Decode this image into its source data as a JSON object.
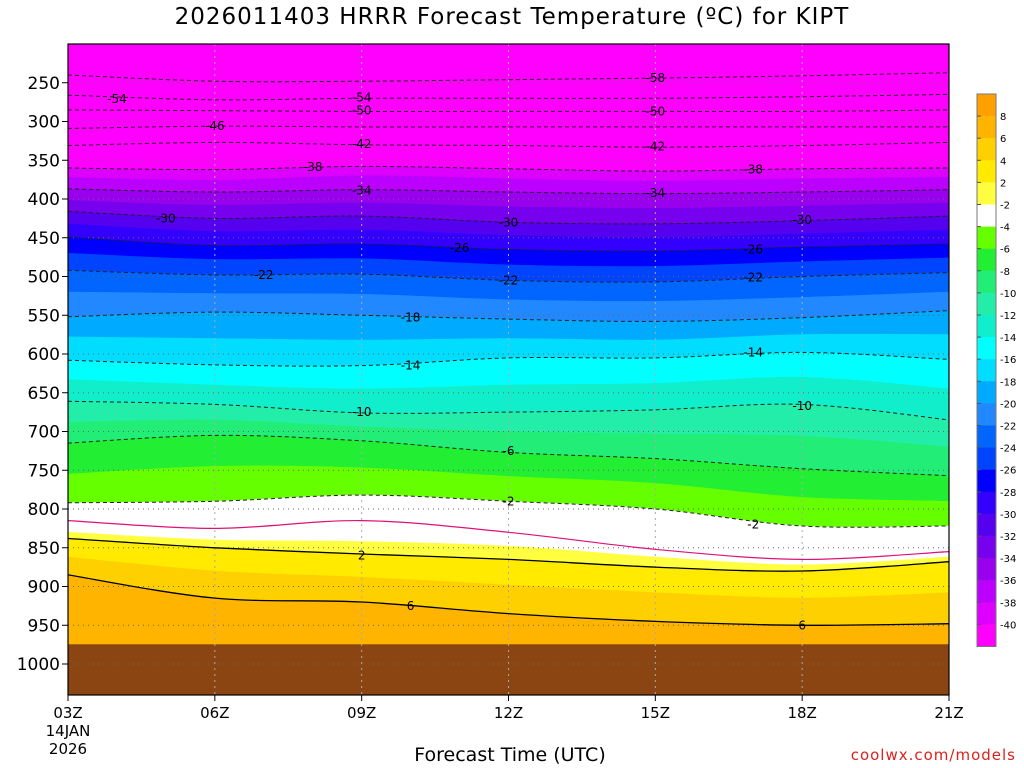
{
  "title": "2026011403 HRRR Forecast Temperature (ºC) for KIPT",
  "credit": "coolwx.com/models",
  "chart_data": {
    "type": "heatmap",
    "title": "2026011403 HRRR Forecast Temperature (ºC) for KIPT",
    "xlabel": "Forecast Time (UTC)",
    "ylabel": "Pressure (hPa)",
    "x_ticks": [
      "03Z",
      "06Z",
      "09Z",
      "12Z",
      "15Z",
      "18Z",
      "21Z"
    ],
    "x_hours": [
      0,
      3,
      6,
      9,
      12,
      15,
      18
    ],
    "x_start_date": [
      "14JAN",
      "2026"
    ],
    "y_ticks": [
      "250",
      "300",
      "350",
      "400",
      "450",
      "500",
      "550",
      "600",
      "650",
      "700",
      "750",
      "800",
      "850",
      "900",
      "950",
      "1000"
    ],
    "y_values": [
      250,
      300,
      350,
      400,
      450,
      500,
      550,
      600,
      650,
      700,
      750,
      800,
      850,
      900,
      950,
      1000
    ],
    "ylim": [
      1040,
      200
    ],
    "xlim": [
      0,
      18
    ],
    "surface_pressure_hPa": 975,
    "colorbar": {
      "labels": [
        "8",
        "6",
        "4",
        "2",
        "-2",
        "-4",
        "-6",
        "-8",
        "-10",
        "-12",
        "-14",
        "-16",
        "-18",
        "-20",
        "-22",
        "-24",
        "-26",
        "-28",
        "-30",
        "-32",
        "-34",
        "-36",
        "-38",
        "-40"
      ],
      "colors": [
        "#ffa000",
        "#ffb400",
        "#ffd000",
        "#ffea00",
        "#ffff40",
        "#ffffff",
        "#66ff00",
        "#22ee33",
        "#22ee77",
        "#22eeaa",
        "#11eecc",
        "#00ffff",
        "#00ddff",
        "#00aaff",
        "#2288ff",
        "#0066ff",
        "#0044ff",
        "#0000ff",
        "#3300ff",
        "#5500ee",
        "#7700ee",
        "#9900ee",
        "#bb00ff",
        "#dd00ff",
        "#ff00ff"
      ]
    },
    "contours": [
      {
        "level": -58,
        "label": "-58",
        "p": [
          240,
          248,
          248,
          246,
          244,
          241,
          237
        ]
      },
      {
        "level": -54,
        "label": "-54",
        "p": [
          266,
          272,
          270,
          270,
          270,
          268,
          265
        ]
      },
      {
        "level": -50,
        "label": "-50",
        "p": [
          285,
          286,
          287,
          287,
          287,
          287,
          285
        ]
      },
      {
        "level": -46,
        "label": "-46",
        "p": [
          309,
          306,
          307,
          307,
          307,
          307,
          307
        ]
      },
      {
        "level": -42,
        "label": "-42",
        "p": [
          331,
          327,
          330,
          331,
          333,
          331,
          327
        ]
      },
      {
        "level": -38,
        "label": "-38",
        "p": [
          360,
          362,
          358,
          361,
          364,
          361,
          360
        ]
      },
      {
        "level": -34,
        "label": "-34",
        "p": [
          387,
          391,
          388,
          391,
          393,
          391,
          388
        ]
      },
      {
        "level": -30,
        "label": "-30",
        "p": [
          416,
          425,
          422,
          430,
          432,
          428,
          422
        ]
      },
      {
        "level": -26,
        "label": "-26",
        "p": [
          449,
          460,
          458,
          465,
          467,
          462,
          458
        ]
      },
      {
        "level": -22,
        "label": "-22",
        "p": [
          492,
          498,
          497,
          505,
          507,
          500,
          495
        ]
      },
      {
        "level": -18,
        "label": "-18",
        "p": [
          552,
          546,
          550,
          555,
          558,
          553,
          544
        ]
      },
      {
        "level": -14,
        "label": "-14",
        "p": [
          608,
          614,
          615,
          605,
          605,
          598,
          607
        ]
      },
      {
        "level": -10,
        "label": "-10",
        "p": [
          661,
          665,
          676,
          675,
          672,
          665,
          685
        ]
      },
      {
        "level": -6,
        "label": "-6",
        "p": [
          715,
          705,
          712,
          727,
          735,
          748,
          757
        ]
      },
      {
        "level": -2,
        "label": "-2",
        "p": [
          792,
          790,
          782,
          790,
          800,
          822,
          822
        ]
      },
      {
        "level": 0,
        "label": "",
        "p": [
          815,
          825,
          815,
          830,
          852,
          865,
          855
        ]
      },
      {
        "level": 2,
        "label": "2",
        "p": [
          838,
          850,
          858,
          865,
          875,
          880,
          868
        ]
      },
      {
        "level": 6,
        "label": "6",
        "p": [
          885,
          915,
          920,
          935,
          945,
          950,
          948
        ]
      }
    ],
    "fill_bands": [
      {
        "color": "#ff00ff",
        "top": [
          200,
          200,
          200,
          200,
          200,
          200,
          200
        ],
        "bottom": [
          360,
          362,
          358,
          361,
          364,
          361,
          360
        ]
      },
      {
        "color": "#dd00ff",
        "top": [
          360,
          362,
          358,
          361,
          364,
          361,
          360
        ],
        "bottom": [
          372,
          376,
          370,
          374,
          377,
          374,
          372
        ]
      },
      {
        "color": "#bb00ff",
        "top": [
          372,
          376,
          370,
          374,
          377,
          374,
          372
        ],
        "bottom": [
          387,
          391,
          388,
          391,
          393,
          391,
          388
        ]
      },
      {
        "color": "#9900ee",
        "top": [
          387,
          391,
          388,
          391,
          393,
          391,
          388
        ],
        "bottom": [
          402,
          408,
          405,
          410,
          412,
          409,
          405
        ]
      },
      {
        "color": "#7700ee",
        "top": [
          402,
          408,
          405,
          410,
          412,
          409,
          405
        ],
        "bottom": [
          416,
          425,
          422,
          430,
          432,
          428,
          422
        ]
      },
      {
        "color": "#5500ee",
        "top": [
          416,
          425,
          422,
          430,
          432,
          428,
          422
        ],
        "bottom": [
          432,
          442,
          440,
          447,
          450,
          445,
          440
        ]
      },
      {
        "color": "#3300ff",
        "top": [
          432,
          442,
          440,
          447,
          450,
          445,
          440
        ],
        "bottom": [
          449,
          460,
          458,
          465,
          467,
          462,
          458
        ]
      },
      {
        "color": "#0000ff",
        "top": [
          449,
          460,
          458,
          465,
          467,
          462,
          458
        ],
        "bottom": [
          470,
          478,
          477,
          485,
          487,
          481,
          476
        ]
      },
      {
        "color": "#0044ff",
        "top": [
          470,
          478,
          477,
          485,
          487,
          481,
          476
        ],
        "bottom": [
          492,
          498,
          497,
          505,
          507,
          500,
          495
        ]
      },
      {
        "color": "#0066ff",
        "top": [
          492,
          498,
          497,
          505,
          507,
          500,
          495
        ],
        "bottom": [
          520,
          522,
          523,
          530,
          532,
          527,
          520
        ]
      },
      {
        "color": "#2288ff",
        "top": [
          520,
          522,
          523,
          530,
          532,
          527,
          520
        ],
        "bottom": [
          552,
          546,
          550,
          555,
          558,
          553,
          544
        ]
      },
      {
        "color": "#00aaff",
        "top": [
          552,
          546,
          550,
          555,
          558,
          553,
          544
        ],
        "bottom": [
          578,
          580,
          582,
          580,
          582,
          575,
          575
        ]
      },
      {
        "color": "#00ddff",
        "top": [
          578,
          580,
          582,
          580,
          582,
          575,
          575
        ],
        "bottom": [
          608,
          614,
          615,
          605,
          605,
          598,
          607
        ]
      },
      {
        "color": "#00ffff",
        "top": [
          608,
          614,
          615,
          605,
          605,
          598,
          607
        ],
        "bottom": [
          633,
          640,
          645,
          640,
          638,
          630,
          645
        ]
      },
      {
        "color": "#11eecc",
        "top": [
          633,
          640,
          645,
          640,
          638,
          630,
          645
        ],
        "bottom": [
          661,
          665,
          676,
          675,
          672,
          665,
          685
        ]
      },
      {
        "color": "#22eeaa",
        "top": [
          661,
          665,
          676,
          675,
          672,
          665,
          685
        ],
        "bottom": [
          688,
          685,
          694,
          700,
          703,
          706,
          720
        ]
      },
      {
        "color": "#22ee77",
        "top": [
          688,
          685,
          694,
          700,
          703,
          706,
          720
        ],
        "bottom": [
          715,
          705,
          712,
          727,
          735,
          748,
          757
        ]
      },
      {
        "color": "#22ee33",
        "top": [
          715,
          705,
          712,
          727,
          735,
          748,
          757
        ],
        "bottom": [
          755,
          745,
          747,
          758,
          767,
          785,
          790
        ]
      },
      {
        "color": "#66ff00",
        "top": [
          755,
          745,
          747,
          758,
          767,
          785,
          790
        ],
        "bottom": [
          792,
          790,
          782,
          790,
          800,
          822,
          822
        ]
      },
      {
        "color": "#ffffff",
        "top": [
          792,
          790,
          782,
          790,
          800,
          822,
          822
        ],
        "bottom": [
          830,
          840,
          842,
          848,
          862,
          872,
          862
        ]
      },
      {
        "color": "#ffff40",
        "top": [
          830,
          840,
          842,
          848,
          862,
          872,
          862
        ],
        "bottom": [
          838,
          850,
          858,
          865,
          875,
          880,
          868
        ]
      },
      {
        "color": "#ffea00",
        "top": [
          838,
          850,
          858,
          865,
          875,
          880,
          868
        ],
        "bottom": [
          862,
          880,
          888,
          898,
          908,
          915,
          908
        ]
      },
      {
        "color": "#ffd000",
        "top": [
          862,
          880,
          888,
          898,
          908,
          915,
          908
        ],
        "bottom": [
          885,
          915,
          920,
          935,
          945,
          950,
          948
        ]
      },
      {
        "color": "#ffb400",
        "top": [
          885,
          915,
          920,
          935,
          945,
          950,
          948
        ],
        "bottom": [
          975,
          975,
          975,
          975,
          975,
          975,
          975
        ]
      },
      {
        "color": "#8b4513",
        "top": [
          975,
          975,
          975,
          975,
          975,
          975,
          975
        ],
        "bottom": [
          1040,
          1040,
          1040,
          1040,
          1040,
          1040,
          1040
        ]
      }
    ],
    "contour_labels": [
      {
        "text": "-58",
        "hour": 12,
        "p": 244
      },
      {
        "text": "-54",
        "hour": 1,
        "p": 271
      },
      {
        "text": "-54",
        "hour": 6,
        "p": 269
      },
      {
        "text": "-50",
        "hour": 6,
        "p": 286
      },
      {
        "text": "-50",
        "hour": 12,
        "p": 287
      },
      {
        "text": "-46",
        "hour": 3,
        "p": 306
      },
      {
        "text": "-42",
        "hour": 6,
        "p": 329
      },
      {
        "text": "-42",
        "hour": 12,
        "p": 332
      },
      {
        "text": "-38",
        "hour": 5,
        "p": 359
      },
      {
        "text": "-38",
        "hour": 14,
        "p": 362
      },
      {
        "text": "-34",
        "hour": 6,
        "p": 389
      },
      {
        "text": "-34",
        "hour": 12,
        "p": 392
      },
      {
        "text": "-30",
        "hour": 2,
        "p": 425
      },
      {
        "text": "-30",
        "hour": 9,
        "p": 430
      },
      {
        "text": "-30",
        "hour": 15,
        "p": 427
      },
      {
        "text": "-26",
        "hour": 8,
        "p": 463
      },
      {
        "text": "-26",
        "hour": 14,
        "p": 465
      },
      {
        "text": "-22",
        "hour": 4,
        "p": 498
      },
      {
        "text": "-22",
        "hour": 9,
        "p": 505
      },
      {
        "text": "-22",
        "hour": 14,
        "p": 501
      },
      {
        "text": "-18",
        "hour": 7,
        "p": 553
      },
      {
        "text": "-14",
        "hour": 7,
        "p": 615
      },
      {
        "text": "-14",
        "hour": 14,
        "p": 598
      },
      {
        "text": "-10",
        "hour": 6,
        "p": 675
      },
      {
        "text": "-10",
        "hour": 15,
        "p": 667
      },
      {
        "text": "-6",
        "hour": 9,
        "p": 725
      },
      {
        "text": "-2",
        "hour": 9,
        "p": 790
      },
      {
        "text": "-2",
        "hour": 14,
        "p": 820
      },
      {
        "text": "2",
        "hour": 6,
        "p": 860
      },
      {
        "text": "6",
        "hour": 7,
        "p": 925
      },
      {
        "text": "6",
        "hour": 15,
        "p": 950
      }
    ]
  }
}
